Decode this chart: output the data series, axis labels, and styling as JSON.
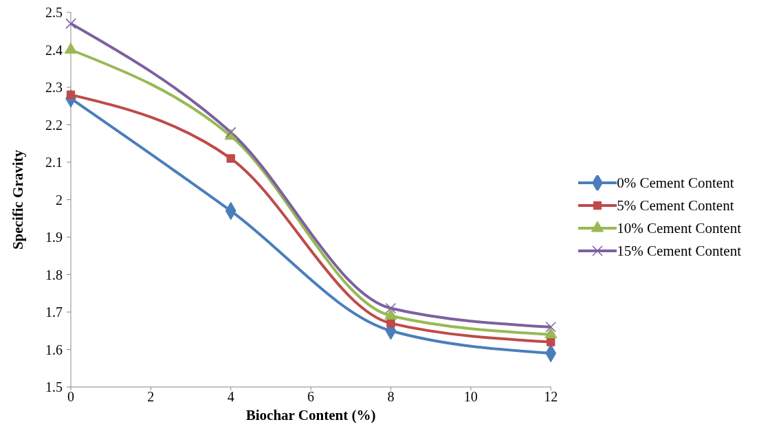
{
  "chart_data": {
    "type": "line",
    "xlabel": "Biochar Content (%)",
    "ylabel": "Specific Gravity",
    "x": [
      0,
      4,
      8,
      12
    ],
    "series": [
      {
        "name": "0% Cement Content",
        "color": "#4a7ebb",
        "marker": "diamond",
        "values": [
          2.27,
          1.97,
          1.65,
          1.59
        ]
      },
      {
        "name": "5% Cement Content",
        "color": "#be4b48",
        "marker": "square",
        "values": [
          2.28,
          2.11,
          1.67,
          1.62
        ]
      },
      {
        "name": "10% Cement Content",
        "color": "#98b954",
        "marker": "triangle",
        "values": [
          2.4,
          2.17,
          1.69,
          1.64
        ]
      },
      {
        "name": "15% Cement Content",
        "color": "#7d60a0",
        "marker": "cross",
        "values": [
          2.47,
          2.18,
          1.71,
          1.66
        ]
      }
    ],
    "xlim": [
      0,
      12
    ],
    "xticks": [
      0,
      2,
      4,
      6,
      8,
      10,
      12
    ],
    "ylim": [
      1.5,
      2.5
    ],
    "yticks": [
      1.5,
      1.6,
      1.7,
      1.8,
      1.9,
      2,
      2.1,
      2.2,
      2.3,
      2.4,
      2.5
    ],
    "grid": false,
    "legend": "right",
    "line_style": "solid"
  }
}
